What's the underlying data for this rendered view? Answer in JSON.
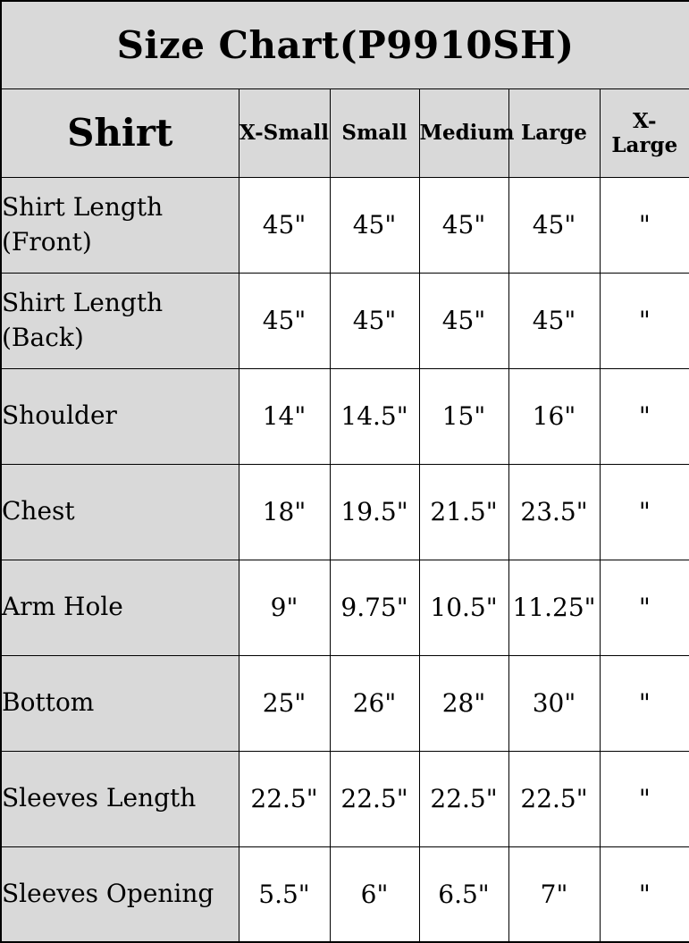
{
  "colors": {
    "header_fill": "#d9d9d9",
    "cell_fill": "#ffffff",
    "grid_line": "#000000",
    "text": "#000000"
  },
  "table": {
    "title": "Size Chart(P9910SH)",
    "corner_label": "Shirt",
    "size_headers": [
      "X-Small",
      "Small",
      "Medium",
      "Large",
      "X-Large"
    ],
    "rows": [
      {
        "label": "Shirt Length (Front)",
        "values": [
          "45\"",
          "45\"",
          "45\"",
          "45\"",
          "\""
        ]
      },
      {
        "label": "Shirt Length (Back)",
        "values": [
          "45\"",
          "45\"",
          "45\"",
          "45\"",
          "\""
        ]
      },
      {
        "label": "Shoulder",
        "values": [
          "14\"",
          "14.5\"",
          "15\"",
          "16\"",
          "\""
        ]
      },
      {
        "label": "Chest",
        "values": [
          "18\"",
          "19.5\"",
          "21.5\"",
          "23.5\"",
          "\""
        ]
      },
      {
        "label": "Arm Hole",
        "values": [
          "9\"",
          "9.75\"",
          "10.5\"",
          "11.25\"",
          "\""
        ]
      },
      {
        "label": "Bottom",
        "values": [
          "25\"",
          "26\"",
          "28\"",
          "30\"",
          "\""
        ]
      },
      {
        "label": "Sleeves Length",
        "values": [
          "22.5\"",
          "22.5\"",
          "22.5\"",
          "22.5\"",
          "\""
        ]
      },
      {
        "label": "Sleeves Opening",
        "values": [
          "5.5\"",
          "6\"",
          "6.5\"",
          "7\"",
          "\""
        ]
      }
    ]
  },
  "chart_data": {
    "type": "table",
    "title": "Size Chart(P9910SH)",
    "row_header": "Shirt",
    "columns": [
      "X-Small",
      "Small",
      "Medium",
      "Large",
      "X-Large"
    ],
    "rows": [
      {
        "measurement": "Shirt Length (Front)",
        "X-Small": "45\"",
        "Small": "45\"",
        "Medium": "45\"",
        "Large": "45\"",
        "X-Large": "\""
      },
      {
        "measurement": "Shirt Length (Back)",
        "X-Small": "45\"",
        "Small": "45\"",
        "Medium": "45\"",
        "Large": "45\"",
        "X-Large": "\""
      },
      {
        "measurement": "Shoulder",
        "X-Small": "14\"",
        "Small": "14.5\"",
        "Medium": "15\"",
        "Large": "16\"",
        "X-Large": "\""
      },
      {
        "measurement": "Chest",
        "X-Small": "18\"",
        "Small": "19.5\"",
        "Medium": "21.5\"",
        "Large": "23.5\"",
        "X-Large": "\""
      },
      {
        "measurement": "Arm Hole",
        "X-Small": "9\"",
        "Small": "9.75\"",
        "Medium": "10.5\"",
        "Large": "11.25\"",
        "X-Large": "\""
      },
      {
        "measurement": "Bottom",
        "X-Small": "25\"",
        "Small": "26\"",
        "Medium": "28\"",
        "Large": "30\"",
        "X-Large": "\""
      },
      {
        "measurement": "Sleeves Length",
        "X-Small": "22.5\"",
        "Small": "22.5\"",
        "Medium": "22.5\"",
        "Large": "22.5\"",
        "X-Large": "\""
      },
      {
        "measurement": "Sleeves Opening",
        "X-Small": "5.5\"",
        "Small": "6\"",
        "Medium": "6.5\"",
        "Large": "7\"",
        "X-Large": "\""
      }
    ]
  }
}
